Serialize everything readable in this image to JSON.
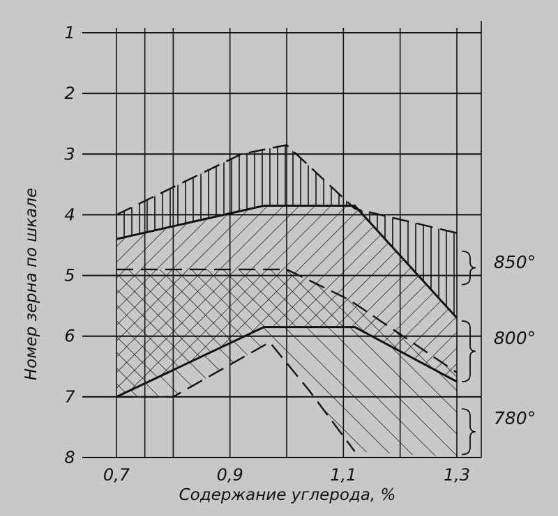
{
  "chart_data": {
    "type": "area",
    "xlabel": "Содержание углерода, %",
    "ylabel": "Номер зерна по шкале",
    "x_ticks": [
      "0,7",
      "0,9",
      "1,1",
      "1,3"
    ],
    "y_ticks": [
      "1",
      "2",
      "3",
      "4",
      "5",
      "6",
      "7",
      "8"
    ],
    "xlim": [
      0.68,
      1.31
    ],
    "ylim": [
      1,
      8
    ],
    "y_inverted": true,
    "grid": true,
    "bands": [
      {
        "name": "850°",
        "upper_dashed": [
          [
            0.7,
            4.0
          ],
          [
            0.92,
            3.0
          ],
          [
            1.0,
            2.85
          ],
          [
            1.12,
            3.9
          ],
          [
            1.3,
            4.3
          ]
        ],
        "upper_solid": [
          [
            0.7,
            4.4
          ],
          [
            0.96,
            3.85
          ],
          [
            1.12,
            3.85
          ],
          [
            1.3,
            5.7
          ]
        ],
        "lower_solid": [
          [
            0.7,
            7.0
          ],
          [
            0.96,
            5.85
          ],
          [
            1.12,
            5.85
          ],
          [
            1.3,
            6.75
          ]
        ],
        "lower_dashed": [
          [
            0.7,
            4.9
          ],
          [
            1.0,
            4.9
          ],
          [
            1.11,
            5.4
          ],
          [
            1.3,
            6.6
          ]
        ]
      },
      {
        "name": "800°",
        "upper_solid": [
          [
            0.7,
            7.0
          ],
          [
            0.96,
            5.85
          ],
          [
            1.12,
            5.85
          ],
          [
            1.3,
            6.75
          ]
        ],
        "lower_dashed": [
          [
            0.7,
            7.0
          ],
          [
            0.8,
            7.0
          ],
          [
            0.97,
            6.1
          ],
          [
            1.04,
            6.9
          ],
          [
            1.12,
            7.9
          ]
        ]
      },
      {
        "name": "780°",
        "lower_dashed": [
          [
            0.7,
            7.0
          ],
          [
            0.8,
            7.0
          ],
          [
            0.97,
            6.1
          ],
          [
            1.04,
            6.9
          ],
          [
            1.12,
            7.9
          ]
        ]
      }
    ],
    "legend": [
      "850°",
      "800°",
      "780°"
    ]
  }
}
